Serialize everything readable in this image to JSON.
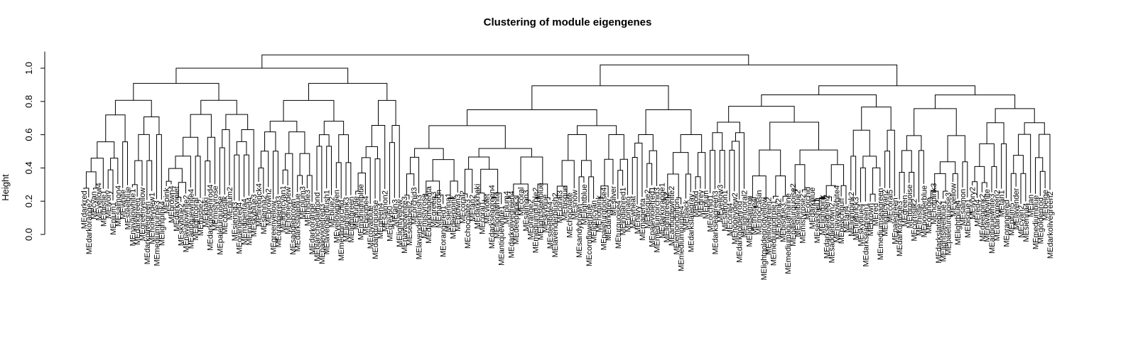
{
  "chart_data": {
    "type": "dendrogram",
    "title": "Clustering of module eigengenes",
    "xlabel": "",
    "ylabel": "Height",
    "ylim": [
      0,
      1.1
    ],
    "yticks": [
      "0.0",
      "0.2",
      "0.4",
      "0.6",
      "0.8",
      "1.0"
    ],
    "grid": false,
    "legend": "none",
    "merge_heights": {
      "root": 1.08,
      "top_left": 1.0,
      "top_right": 1.02,
      "left_groups": [
        0.82,
        0.75,
        0.68,
        0.64,
        0.58,
        0.55,
        0.49,
        0.46,
        0.4,
        0.35,
        0.3,
        0.25,
        0.2
      ],
      "right_groups": [
        0.98,
        0.95,
        0.9,
        0.87,
        0.82,
        0.78,
        0.74,
        0.7,
        0.66,
        0.62,
        0.58,
        0.54,
        0.5,
        0.45,
        0.4,
        0.35,
        0.3,
        0.25,
        0.2
      ]
    },
    "leaves": [
      "MEdarkred",
      "MEdarkorange2",
      "MEcyan",
      "MEyellow4",
      "MEthistle1",
      "MEivory",
      "MEplum1",
      "MEsalmon4",
      "MEwhite",
      "MEsteelblue",
      "MEnavajowhite1",
      "MEdarkgreen",
      "MEgreenyellow",
      "MEdarkolivegreen",
      "MEhoneydew1",
      "MEmediumpurple3",
      "MElightpink4",
      "MEpink",
      "MEbrown4",
      "MEdarkviolet",
      "MEskyblue2",
      "MEnavajowhite2",
      "MEantiquewhite4",
      "MElightcoral",
      "MEthistle2",
      "MEkhaki",
      "MEdarkgoldenrod4",
      "MEmistyrose",
      "MEpaleturquoise",
      "MEcornsilk",
      "MEplum2",
      "MEsienna3",
      "MEorangered4",
      "MEmagenta4",
      "MEindianred4",
      "MEskyblue3",
      "MEfirebrick4",
      "MEsienna2",
      "MEbrown2",
      "MEgreenyellow",
      "MEorangered3",
      "MElightcyan1",
      "MEhoneydew",
      "MEsaddlebrown",
      "MEdarkslateblue",
      "MEplum3",
      "MEthistle3",
      "MEdarkorange",
      "MEblanchedalmond",
      "MEpalevioletred3",
      "MElavenderblush1",
      "MEblue2",
      "MEyellowgreen",
      "MEmediumorchid",
      "MElightpink3",
      "MElightgreen",
      "MEpurple",
      "MEmidnightblue",
      "MEbisque4",
      "MEroyalblue",
      "MEdarkturquoise",
      "MEgreen4",
      "MEsalmon2",
      "MEgrey60",
      "MEtan3",
      "MElightyellow",
      "MEnavajowhite3",
      "MEseashell2",
      "MEorchid3",
      "MElavenderblush3",
      "MEmistyrose",
      "MEdarkmagenta",
      "MEgreen3",
      "MEmaroon",
      "MEorangered1",
      "MEsienna1",
      "MEdeeppink",
      "MEbrown3",
      "MEcoral2",
      "MEchocolate3",
      "MEtan2",
      "MEdarkkhaki",
      "MEcoral1",
      "MEviolet",
      "MEdarkseagreen4",
      "MEfloralwhite",
      "MEantiquewhite1",
      "MEplum4",
      "MEdarkolivegreen4",
      "MEdeeppink3",
      "MEcoral",
      "MEsalmon3",
      "MEorange2",
      "MEmediumpurple2",
      "MElightsteelblue",
      "MEskyblue",
      "MEsteelblue4",
      "MElavenderblush2",
      "MEcoral3",
      "MEbisque",
      "MEchocolate",
      "MEsnow",
      "MEsandybrown",
      "MElightblue",
      "MEcornflowerblue",
      "MElightcyan",
      "MEhotpink",
      "MEpaleturquoise4",
      "MEdarkgrey",
      "MEsilver",
      "MEturquoise4",
      "MEindianred1",
      "MEtomato",
      "MEwheat",
      "MEnavy",
      "MEmagenta",
      "MEbisque2",
      "MEpalevioletred1",
      "MEmediumorchid3",
      "MEdarkorange1",
      "MElightgreen2",
      "MEantiquewhite2",
      "MElemonchiffon",
      "MEmediumpurple4",
      "MEblack",
      "MEdarkslategray",
      "MEgold",
      "MEgrey",
      "MEplum",
      "MEorchid1",
      "MEdarkseagreen3",
      "MEyellow3",
      "MEsalmon1",
      "MEcoral4",
      "MEhoneydew2",
      "MEdarkgoldenrod",
      "MElightcoral2",
      "MElightsalmon",
      "MEthistle4",
      "MEmoccasin",
      "MElightgoldenrodyellow",
      "MEyellowgreen2",
      "MEmediumpurple1",
      "MEhotpink2",
      "MEbisque3",
      "MEmediumaquamarine",
      "MEpaleturquoise2",
      "MEsteelblue2",
      "MEmistyrose2",
      "MEorchid",
      "MEdarkblue",
      "MEseashell1",
      "MElightpink",
      "MEdarkseagreen2",
      "MEsaddlebrown2",
      "MEnavajowhite4",
      "MEpeachpuff",
      "MEtan4",
      "MElightpink2",
      "MEfirebrick3",
      "MEskyblue4",
      "MEdarkseagreen1",
      "MEbrown",
      "MEred",
      "MEmediumseagreen",
      "MElightcyan2",
      "MEcoral5",
      "MEpalegreen",
      "MEdarkorange3",
      "MEgreen",
      "MEturquoise",
      "MEcornsilk2",
      "MEthistle",
      "MEpowderblue",
      "MEorange",
      "MEhotpink3",
      "MEdarkslateblue2",
      "MElightsteelblue1",
      "MEpaleturquoise3",
      "MEyellow",
      "MElightblue4",
      "MEsalmon",
      "MEbisque1",
      "MEivory2",
      "MEred4",
      "MEdeeppink2",
      "MEnavajowhite",
      "MEantiquewhite3",
      "MEdarkgreen2",
      "MEtan1",
      "MEorangered",
      "MEplum5",
      "MElavender",
      "MEcyan2",
      "MEsienna4",
      "MEtan",
      "MEmediumblue",
      "MEgoldenrod",
      "MEbeige",
      "MEdarkolivegreen2"
    ]
  }
}
